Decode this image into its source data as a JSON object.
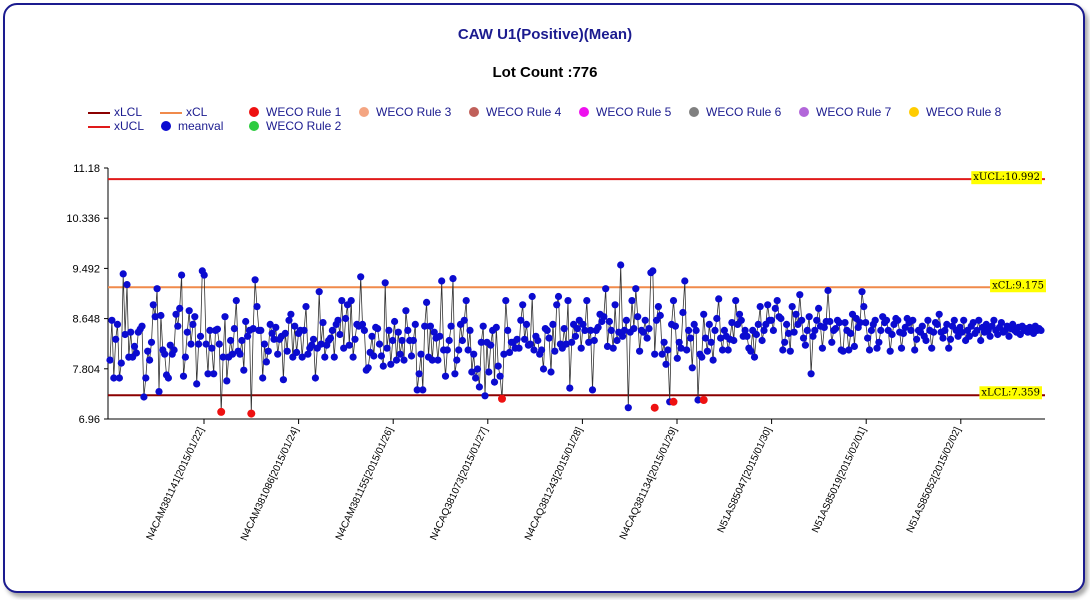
{
  "title": "CAW U1(Positive)(Mean)",
  "subtitle": "Lot Count :776",
  "legend": [
    {
      "label": "xLCL",
      "kind": "line",
      "color": "#8b0000"
    },
    {
      "label": "xUCL",
      "kind": "line",
      "color": "#e01a1a"
    },
    {
      "label": "xCL",
      "kind": "line",
      "color": "#f08a4b"
    },
    {
      "label": "meanval",
      "kind": "dot",
      "color": "#0b0bd0"
    },
    {
      "label": "WECO Rule 1",
      "kind": "dot",
      "color": "#ee1111"
    },
    {
      "label": "WECO Rule 2",
      "kind": "dot",
      "color": "#2ecc40"
    },
    {
      "label": "WECO Rule 3",
      "kind": "dot",
      "color": "#f4a582"
    },
    {
      "label": "WECO Rule 4",
      "kind": "dot",
      "color": "#c0605a"
    },
    {
      "label": "WECO Rule 5",
      "kind": "dot",
      "color": "#ee11ee"
    },
    {
      "label": "WECO Rule 6",
      "kind": "dot",
      "color": "#808080"
    },
    {
      "label": "WECO Rule 7",
      "kind": "dot",
      "color": "#b266d9"
    },
    {
      "label": "WECO Rule 8",
      "kind": "dot",
      "color": "#ffcc00"
    }
  ],
  "chart_data": {
    "type": "line",
    "ylim": [
      6.96,
      11.18
    ],
    "yticks": [
      "11.18",
      "10.336",
      "9.492",
      "8.648",
      "7.804",
      "6.96"
    ],
    "x_category_labels": [
      "N4CAM381141[2015/01/22]",
      "N4CAM381086[2015/01/24]",
      "N4CAM381155[2015/01/26]",
      "N4CAQ381073[2015/01/27]",
      "N4CAQ381243[2015/01/28]",
      "N4CAQ381134[2015/01/29]",
      "N51AS85047[2015/01/30]",
      "N51AS85019[2015/02/01]",
      "N51AS85052[2015/02/02]"
    ],
    "limits": {
      "xUCL": {
        "value": 10.992,
        "label": "xUCL:10.992",
        "color": "#e01a1a"
      },
      "xCL": {
        "value": 9.175,
        "label": "xCL:9.175",
        "color": "#f08a4b"
      },
      "xLCL": {
        "value": 7.359,
        "label": "xLCL:7.359",
        "color": "#8b0000"
      }
    },
    "series": [
      {
        "name": "meanval",
        "color": "#0b0bd0",
        "values": [
          7.95,
          8.62,
          7.65,
          8.3,
          8.55,
          7.65,
          7.9,
          9.4,
          8.38,
          9.22,
          8.0,
          8.42,
          8.0,
          8.18,
          8.07,
          8.42,
          8.47,
          8.52,
          7.33,
          7.65,
          8.1,
          7.95,
          8.25,
          8.88,
          8.68,
          9.15,
          7.42,
          8.7,
          8.12,
          8.05,
          7.7,
          7.65,
          8.2,
          8.05,
          8.12,
          8.72,
          8.52,
          8.82,
          9.38,
          7.68,
          8.0,
          8.42,
          8.78,
          8.22,
          8.55,
          8.68,
          7.55,
          8.22,
          8.35,
          9.45,
          9.38,
          8.22,
          7.72,
          8.45,
          8.15,
          7.72,
          8.45,
          8.47,
          8.22,
          7.08,
          8.0,
          8.68,
          7.6,
          8.0,
          8.28,
          8.05,
          8.48,
          8.95,
          8.1,
          8.05,
          8.28,
          7.78,
          8.6,
          8.35,
          8.45,
          7.05,
          8.48,
          9.3,
          8.85,
          8.45,
          8.45,
          7.65,
          8.22,
          7.92,
          8.1,
          8.55,
          8.4,
          8.3,
          8.5,
          8.05,
          8.3,
          8.35,
          7.62,
          8.4,
          8.1,
          8.62,
          8.72,
          8.0,
          8.52,
          8.08,
          8.4,
          8.45,
          8.0,
          8.45,
          8.85,
          8.05,
          8.15,
          8.2,
          8.3,
          7.65,
          8.15,
          9.1,
          8.22,
          8.58,
          8.0,
          8.2,
          8.28,
          8.32,
          8.45,
          8.0,
          8.55,
          8.62,
          8.38,
          8.95,
          8.15,
          8.65,
          8.88,
          8.2,
          8.95,
          8.0,
          8.3,
          8.55,
          8.52,
          9.35,
          8.55,
          8.45,
          7.78,
          7.82,
          8.08,
          8.35,
          8.02,
          8.5,
          8.48,
          8.22,
          8.02,
          7.85,
          9.25,
          8.15,
          8.45,
          7.88,
          8.28,
          8.6,
          7.95,
          8.42,
          8.05,
          8.28,
          7.95,
          8.78,
          8.45,
          8.28,
          8.02,
          8.28,
          8.55,
          7.45,
          7.72,
          8.05,
          7.45,
          8.52,
          8.92,
          8.0,
          8.52,
          7.95,
          8.42,
          8.32,
          7.95,
          8.35,
          9.28,
          8.12,
          7.68,
          8.12,
          8.28,
          8.52,
          9.32,
          7.72,
          7.95,
          8.12,
          8.55,
          8.28,
          8.62,
          8.95,
          8.12,
          8.45,
          7.75,
          8.05,
          7.65,
          7.8,
          7.5,
          8.25,
          8.52,
          7.35,
          8.25,
          7.75,
          8.2,
          8.45,
          7.58,
          8.5,
          7.85,
          7.68,
          7.3,
          8.05,
          8.95,
          8.45,
          8.08,
          8.25,
          8.25,
          8.15,
          8.3,
          8.15,
          8.62,
          8.88,
          8.3,
          8.55,
          8.2,
          8.22,
          9.02,
          8.12,
          8.35,
          8.28,
          8.05,
          8.12,
          7.8,
          8.48,
          8.45,
          8.32,
          7.75,
          8.55,
          8.1,
          8.88,
          9.02,
          8.22,
          8.15,
          8.48,
          8.22,
          8.95,
          7.48,
          8.25,
          8.55,
          8.35,
          8.48,
          8.62,
          8.15,
          8.55,
          8.45,
          8.95,
          8.25,
          8.45,
          7.45,
          8.28,
          8.45,
          8.5,
          8.72,
          8.6,
          8.68,
          9.15,
          8.18,
          8.6,
          8.45,
          8.15,
          8.88,
          8.28,
          8.42,
          9.55,
          8.35,
          8.45,
          8.62,
          7.15,
          8.42,
          8.95,
          8.48,
          9.15,
          8.68,
          8.1,
          8.45,
          8.42,
          8.62,
          8.32,
          8.48,
          9.42,
          9.45,
          8.05,
          8.62,
          8.85,
          8.7,
          8.05,
          8.25,
          7.88,
          8.12,
          7.25,
          8.55,
          8.95,
          8.52,
          7.98,
          8.25,
          8.15,
          8.75,
          9.28,
          8.12,
          8.45,
          8.32,
          7.82,
          8.55,
          8.45,
          7.28,
          8.05,
          8.0,
          8.72,
          8.32,
          8.1,
          8.55,
          8.25,
          7.95,
          8.45,
          8.65,
          8.98,
          8.32,
          8.12,
          8.45,
          8.35,
          8.12,
          8.3,
          8.58,
          8.28,
          8.95,
          8.55,
          8.72,
          8.62,
          8.35,
          8.45,
          8.35,
          8.15,
          8.1,
          8.45,
          8.0,
          8.38,
          8.55,
          8.85,
          8.28,
          8.45,
          8.55,
          8.88,
          8.62,
          8.62,
          8.45,
          8.82,
          8.95,
          8.68,
          8.65,
          8.12,
          8.25,
          8.55,
          8.4,
          8.1,
          8.85,
          8.42,
          8.72,
          8.55,
          9.05,
          8.62,
          8.32,
          8.2,
          8.45,
          8.68,
          7.72,
          8.35,
          8.45,
          8.62,
          8.82,
          8.52,
          8.15,
          8.5,
          8.6,
          9.12,
          8.6,
          8.25,
          8.45,
          8.48,
          8.62,
          8.58,
          8.12,
          8.1,
          8.58,
          8.45,
          8.12,
          8.4,
          8.72,
          8.18,
          8.65,
          8.5,
          8.58,
          9.1,
          8.85,
          8.58,
          8.32,
          8.12,
          8.45,
          8.55,
          8.62,
          8.15,
          8.25,
          8.45,
          8.68,
          8.58,
          8.62,
          8.45,
          8.1,
          8.38,
          8.55,
          8.65,
          8.62,
          8.42,
          8.15,
          8.4,
          8.5,
          8.65,
          8.58,
          8.45,
          8.62,
          8.12,
          8.3,
          8.45,
          8.42,
          8.52,
          8.35,
          8.28,
          8.62,
          8.45,
          8.15,
          8.42,
          8.58,
          8.55,
          8.72,
          8.42,
          8.32,
          8.45,
          8.55,
          8.15,
          8.3,
          8.52,
          8.62,
          8.45,
          8.35,
          8.5,
          8.42,
          8.62,
          8.28,
          8.45,
          8.35,
          8.52,
          8.58,
          8.4,
          8.45,
          8.62,
          8.28,
          8.5,
          8.42,
          8.55,
          8.45,
          8.35,
          8.52,
          8.62,
          8.45,
          8.38,
          8.5,
          8.58,
          8.42,
          8.45,
          8.52,
          8.35,
          8.48,
          8.55,
          8.45,
          8.42,
          8.5,
          8.38,
          8.52,
          8.45,
          8.48,
          8.42,
          8.5,
          8.45,
          8.4,
          8.52,
          8.45,
          8.48,
          8.45
        ]
      },
      {
        "name": "WECO Rule 1",
        "color": "#ee1111",
        "points": [
          {
            "index": 59,
            "value": 7.08
          },
          {
            "index": 75,
            "value": 7.05
          },
          {
            "index": 208,
            "value": 7.3
          },
          {
            "index": 289,
            "value": 7.15
          },
          {
            "index": 299,
            "value": 7.25
          },
          {
            "index": 315,
            "value": 7.28
          }
        ]
      }
    ]
  }
}
